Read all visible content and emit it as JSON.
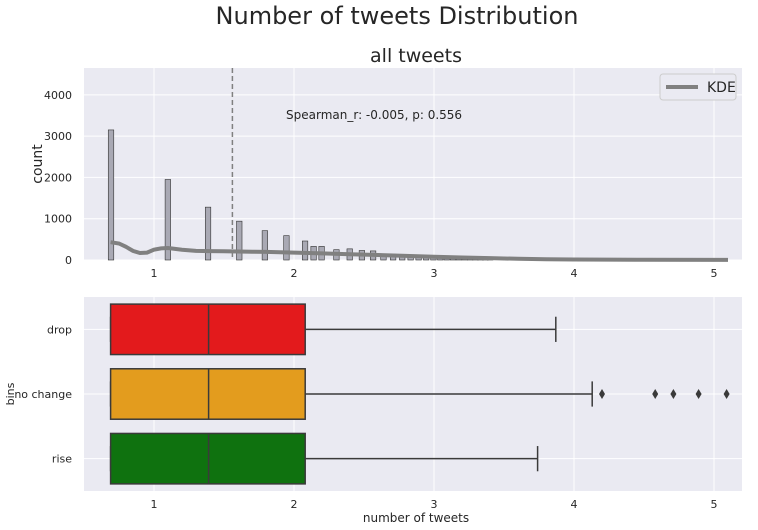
{
  "figure": {
    "suptitle": "Number of tweets Distribution"
  },
  "chart_data": [
    {
      "type": "bar",
      "title": "all tweets",
      "xlabel": "",
      "ylabel": "count",
      "xlim": [
        0.5,
        5.2
      ],
      "ylim": [
        0,
        4650
      ],
      "xticks": [
        1,
        2,
        3,
        4,
        5
      ],
      "yticks": [
        0,
        1000,
        2000,
        3000,
        4000
      ],
      "grid": true,
      "legend": {
        "position": "top-right",
        "entries": [
          {
            "name": "KDE",
            "color": "#808080"
          }
        ]
      },
      "annotation": "Spearman_r: -0.005, p: 0.556",
      "vline_x": 1.56,
      "bars": [
        {
          "x": 0.693,
          "value": 3150
        },
        {
          "x": 1.099,
          "value": 1950
        },
        {
          "x": 1.386,
          "value": 1280
        },
        {
          "x": 1.609,
          "value": 940
        },
        {
          "x": 1.792,
          "value": 710
        },
        {
          "x": 1.946,
          "value": 590
        },
        {
          "x": 2.079,
          "value": 460
        },
        {
          "x": 2.14,
          "value": 330
        },
        {
          "x": 2.197,
          "value": 330
        },
        {
          "x": 2.303,
          "value": 250
        },
        {
          "x": 2.398,
          "value": 270
        },
        {
          "x": 2.485,
          "value": 230
        },
        {
          "x": 2.565,
          "value": 220
        },
        {
          "x": 2.639,
          "value": 150
        },
        {
          "x": 2.708,
          "value": 140
        },
        {
          "x": 2.773,
          "value": 120
        },
        {
          "x": 2.833,
          "value": 110
        },
        {
          "x": 2.89,
          "value": 90
        },
        {
          "x": 2.944,
          "value": 80
        },
        {
          "x": 2.996,
          "value": 75
        },
        {
          "x": 3.045,
          "value": 60
        },
        {
          "x": 3.091,
          "value": 55
        },
        {
          "x": 3.136,
          "value": 45
        },
        {
          "x": 3.178,
          "value": 40
        },
        {
          "x": 3.219,
          "value": 35
        },
        {
          "x": 3.258,
          "value": 30
        },
        {
          "x": 3.296,
          "value": 28
        },
        {
          "x": 3.332,
          "value": 25
        },
        {
          "x": 3.367,
          "value": 22
        },
        {
          "x": 3.401,
          "value": 20
        }
      ],
      "kde": {
        "x": [
          0.69,
          0.75,
          0.8,
          0.85,
          0.9,
          0.95,
          1.0,
          1.05,
          1.1,
          1.15,
          1.2,
          1.3,
          1.4,
          1.5,
          1.6,
          1.7,
          1.8,
          1.9,
          2.0,
          2.2,
          2.4,
          2.6,
          2.8,
          3.0,
          3.2,
          3.4,
          3.6,
          3.8,
          4.0,
          4.5,
          5.1
        ],
        "y": [
          430,
          400,
          320,
          220,
          170,
          180,
          250,
          280,
          290,
          270,
          250,
          220,
          215,
          210,
          205,
          200,
          195,
          190,
          180,
          160,
          140,
          120,
          100,
          80,
          60,
          45,
          30,
          20,
          12,
          5,
          2
        ]
      }
    },
    {
      "type": "box",
      "title": "",
      "xlabel": "number of tweets",
      "ylabel": "bins",
      "xlim": [
        0.5,
        5.2
      ],
      "xticks": [
        1,
        2,
        3,
        4,
        5
      ],
      "grid": true,
      "categories": [
        "drop",
        "no change",
        "rise"
      ],
      "boxes": [
        {
          "name": "drop",
          "min": 0.69,
          "q1": 0.69,
          "median": 1.39,
          "q3": 2.08,
          "max": 3.87,
          "outliers": [],
          "color": "#e31a1c"
        },
        {
          "name": "no change",
          "min": 0.69,
          "q1": 0.69,
          "median": 1.39,
          "q3": 2.08,
          "max": 4.13,
          "outliers": [
            4.2,
            4.58,
            4.71,
            4.89,
            5.09
          ],
          "color": "#e39c1e"
        },
        {
          "name": "rise",
          "min": 0.69,
          "q1": 0.69,
          "median": 1.39,
          "q3": 2.08,
          "max": 3.74,
          "outliers": [],
          "color": "#0f720f"
        }
      ]
    }
  ]
}
